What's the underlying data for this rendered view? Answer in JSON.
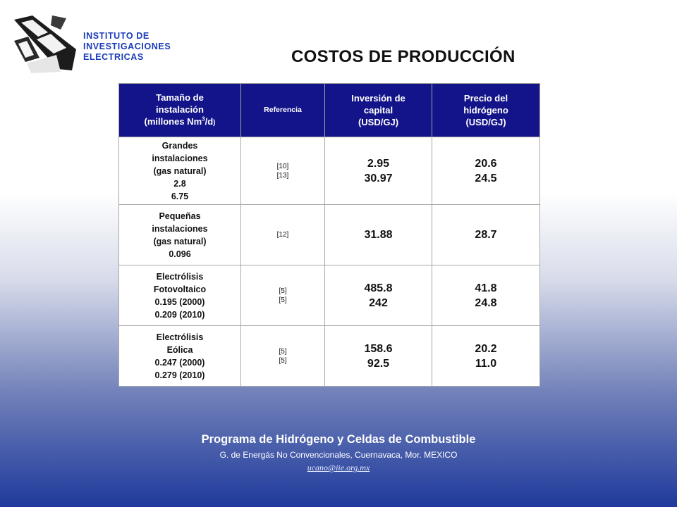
{
  "institute": {
    "lines": [
      "INSTITUTO DE",
      "INVESTIGACIONES",
      "ELECTRICAS"
    ]
  },
  "title": "COSTOS DE PRODUCCIÓN",
  "table": {
    "headers": {
      "size_a": "Tamaño de",
      "size_b": "instalación",
      "size_c": "(millones Nm",
      "size_sup": "3",
      "size_d": "/d",
      "size_e": ")",
      "ref": "Referencia",
      "inv_a": "Inversión de",
      "inv_b": "capital",
      "inv_c": "(USD/GJ)",
      "price_a": "Precio del",
      "price_b": "hidrógeno",
      "price_c": "(USD/GJ)"
    },
    "rows": [
      {
        "size": [
          "Grandes",
          "instalaciones",
          "(gas natural)",
          "2.8",
          "6.75"
        ],
        "refs": [
          "[10]",
          "[13]"
        ],
        "investment": [
          "2.95",
          "30.97"
        ],
        "price": [
          "20.6",
          "24.5"
        ]
      },
      {
        "size": [
          "Pequeñas",
          "instalaciones",
          "(gas natural)",
          "0.096"
        ],
        "refs": [
          "[12]"
        ],
        "investment": [
          "31.88"
        ],
        "price": [
          "28.7"
        ]
      },
      {
        "size": [
          "Electrólisis",
          "Fotovoltaico",
          "0.195 (2000)",
          "0.209 (2010)"
        ],
        "refs": [
          "[5]",
          "[5]"
        ],
        "investment": [
          "485.8",
          "242"
        ],
        "price": [
          "41.8",
          "24.8"
        ]
      },
      {
        "size": [
          "Electrólisis",
          "Eólica",
          "0.247 (2000)",
          "0.279 (2010)"
        ],
        "refs": [
          "[5]",
          "[5]"
        ],
        "investment": [
          "158.6",
          "92.5"
        ],
        "price": [
          "20.2",
          "11.0"
        ]
      }
    ]
  },
  "footer": {
    "program": "Programa de Hidrógeno y Celdas de Combustible",
    "department": "G. de Energás No Convencionales, Cuernavaca,  Mor. MEXICO",
    "email": "ucano@iie.org.mx"
  },
  "colors": {
    "header_bg": "#14148a",
    "institute_text": "#1a3bb8",
    "background_bottom": "#1f3a9c"
  }
}
